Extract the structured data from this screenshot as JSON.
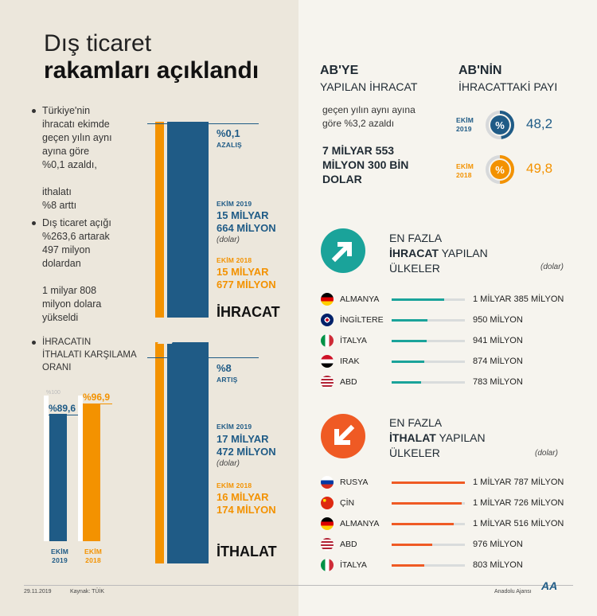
{
  "title": {
    "line1": "Dış ticaret",
    "line2": "rakamları açıklandı"
  },
  "notes": {
    "n1_line1": "Türkiye'nin",
    "n1_line2": "ihracatı ekimde",
    "n1_line3": "geçen yılın aynı",
    "n1_line4": "ayına göre",
    "n1_line5": "%0,1 azaldı,",
    "n1_line6": "ithalatı",
    "n1_line7": "%8 arttı",
    "n2_line1": "Dış ticaret açığı",
    "n2_line2": "%263,6 artarak",
    "n2_line3": "497 milyon",
    "n2_line4": "dolardan",
    "n2_line5": "1 milyar 808",
    "n2_line6": "milyon dolara",
    "n2_line7": "yükseldi"
  },
  "export_block": {
    "change": "%0,1",
    "change_label": "AZALIŞ",
    "y2019_label": "EKİM 2019",
    "y2019_value_l1": "15 MİLYAR",
    "y2019_value_l2": "664 MİLYON",
    "unit": "(dolar)",
    "y2018_label": "EKİM 2018",
    "y2018_value_l1": "15 MİLYAR",
    "y2018_value_l2": "677 MİLYON",
    "name": "İHRACAT"
  },
  "import_block": {
    "change": "%8",
    "change_label": "ARTIŞ",
    "y2019_label": "EKİM 2019",
    "y2019_value_l1": "17 MİLYAR",
    "y2019_value_l2": "472 MİLYON",
    "unit": "(dolar)",
    "y2018_label": "EKİM 2018",
    "y2018_value_l1": "16 MİLYAR",
    "y2018_value_l2": "174 MİLYON",
    "name": "İTHALAT"
  },
  "coverage": {
    "title_l1": "İHRACATIN",
    "title_l2": "İTHALATI KARŞILAMA",
    "title_l3": "ORANI",
    "axis_label": "%100",
    "v2019": "%89,6",
    "v2018": "%96,9",
    "x2019_l1": "EKİM",
    "x2019_l2": "2019",
    "x2018_l1": "EKİM",
    "x2018_l2": "2018",
    "values": [
      89.6,
      96.9
    ]
  },
  "ab_export": {
    "title_l1": "AB'YE",
    "title_l2": "YAPILAN İHRACAT",
    "desc_l1": "geçen yılın aynı ayına",
    "desc_l2": "göre %3,2 azaldı",
    "value_l1": "7 MİLYAR 553",
    "value_l2": "MİLYON 300 BİN",
    "value_l3": "DOLAR"
  },
  "ab_share": {
    "title_l1": "AB'NİN",
    "title_l2": "İHRACATTAKİ PAYI",
    "y2019_l1": "EKİM",
    "y2019_l2": "2019",
    "y2019_value": "48,2",
    "y2018_l1": "EKİM",
    "y2018_l2": "2018",
    "y2018_value": "49,8",
    "pct_symbol": "%",
    "share2019": 48.2,
    "share2018": 49.8
  },
  "top_export": {
    "title_l1": "EN FAZLA",
    "title_bold": "İHRACAT",
    "title_rest": " YAPILAN",
    "title_l3": "ÜLKELER",
    "unit": "(dolar)",
    "rows": [
      {
        "country": "ALMANYA",
        "value": "1 MİLYAR 385 MİLYON",
        "fill": 0.72
      },
      {
        "country": "İNGİLTERE",
        "value": "950 MİLYON",
        "fill": 0.49
      },
      {
        "country": "İTALYA",
        "value": "941 MİLYON",
        "fill": 0.48
      },
      {
        "country": "IRAK",
        "value": "874 MİLYON",
        "fill": 0.45
      },
      {
        "country": "ABD",
        "value": "783 MİLYON",
        "fill": 0.4
      }
    ]
  },
  "top_import": {
    "title_l1": "EN FAZLA",
    "title_bold": "İTHALAT",
    "title_rest": " YAPILAN",
    "title_l3": "ÜLKELER",
    "unit": "(dolar)",
    "rows": [
      {
        "country": "RUSYA",
        "value": "1 MİLYAR 787 MİLYON",
        "fill": 1.0
      },
      {
        "country": "ÇİN",
        "value": "1 MİLYAR 726 MİLYON",
        "fill": 0.96
      },
      {
        "country": "ALMANYA",
        "value": "1 MİLYAR 516 MİLYON",
        "fill": 0.85
      },
      {
        "country": "ABD",
        "value": "976 MİLYON",
        "fill": 0.55
      },
      {
        "country": "İTALYA",
        "value": "803 MİLYON",
        "fill": 0.45
      }
    ]
  },
  "footer": {
    "date": "29.11.2019",
    "source": "Kaynak: TÜİK",
    "agency": "Anadolu Ajansı",
    "logo": "AA"
  },
  "colors": {
    "blue": "#1f5b86",
    "orange": "#f39200",
    "teal": "#1aa39a",
    "red_orange": "#ef5a24"
  }
}
